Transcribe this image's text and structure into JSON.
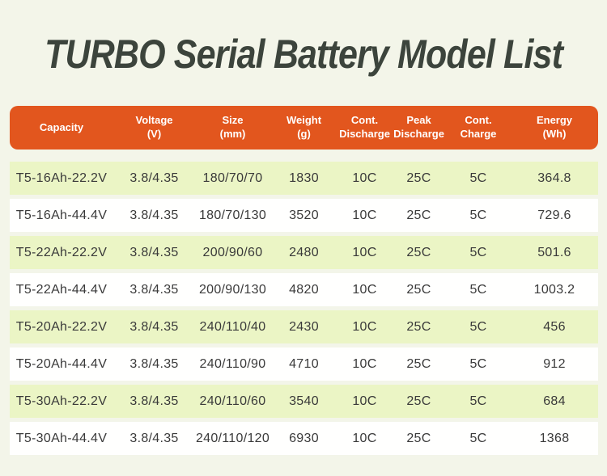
{
  "page": {
    "title": "TURBO Serial Battery Model List"
  },
  "colors": {
    "page_bg": "#f3f5e9",
    "title_text": "#3c443c",
    "header_bg": "#e2561e",
    "header_text": "#ffffff",
    "row_alt_bg": "#ebf5c5",
    "row_bg": "#fffffe",
    "body_text": "#3a3a3a"
  },
  "table": {
    "columns": [
      {
        "line1": "Capacity",
        "line2": ""
      },
      {
        "line1": "Voltage",
        "line2": "(V)"
      },
      {
        "line1": "Size",
        "line2": "(mm)"
      },
      {
        "line1": "Weight",
        "line2": "(g)"
      },
      {
        "line1": "Cont.",
        "line2": "Discharge"
      },
      {
        "line1": "Peak",
        "line2": "Discharge"
      },
      {
        "line1": "Cont.",
        "line2": "Charge"
      },
      {
        "line1": "Energy",
        "line2": "(Wh)"
      }
    ],
    "rows": [
      [
        "T5-16Ah-22.2V",
        "3.8/4.35",
        "180/70/70",
        "1830",
        "10C",
        "25C",
        "5C",
        "364.8"
      ],
      [
        "T5-16Ah-44.4V",
        "3.8/4.35",
        "180/70/130",
        "3520",
        "10C",
        "25C",
        "5C",
        "729.6"
      ],
      [
        "T5-22Ah-22.2V",
        "3.8/4.35",
        "200/90/60",
        "2480",
        "10C",
        "25C",
        "5C",
        "501.6"
      ],
      [
        "T5-22Ah-44.4V",
        "3.8/4.35",
        "200/90/130",
        "4820",
        "10C",
        "25C",
        "5C",
        "1003.2"
      ],
      [
        "T5-20Ah-22.2V",
        "3.8/4.35",
        "240/110/40",
        "2430",
        "10C",
        "25C",
        "5C",
        "456"
      ],
      [
        "T5-20Ah-44.4V",
        "3.8/4.35",
        "240/110/90",
        "4710",
        "10C",
        "25C",
        "5C",
        "912"
      ],
      [
        "T5-30Ah-22.2V",
        "3.8/4.35",
        "240/110/60",
        "3540",
        "10C",
        "25C",
        "5C",
        "684"
      ],
      [
        "T5-30Ah-44.4V",
        "3.8/4.35",
        "240/110/120",
        "6930",
        "10C",
        "25C",
        "5C",
        "1368"
      ]
    ]
  }
}
